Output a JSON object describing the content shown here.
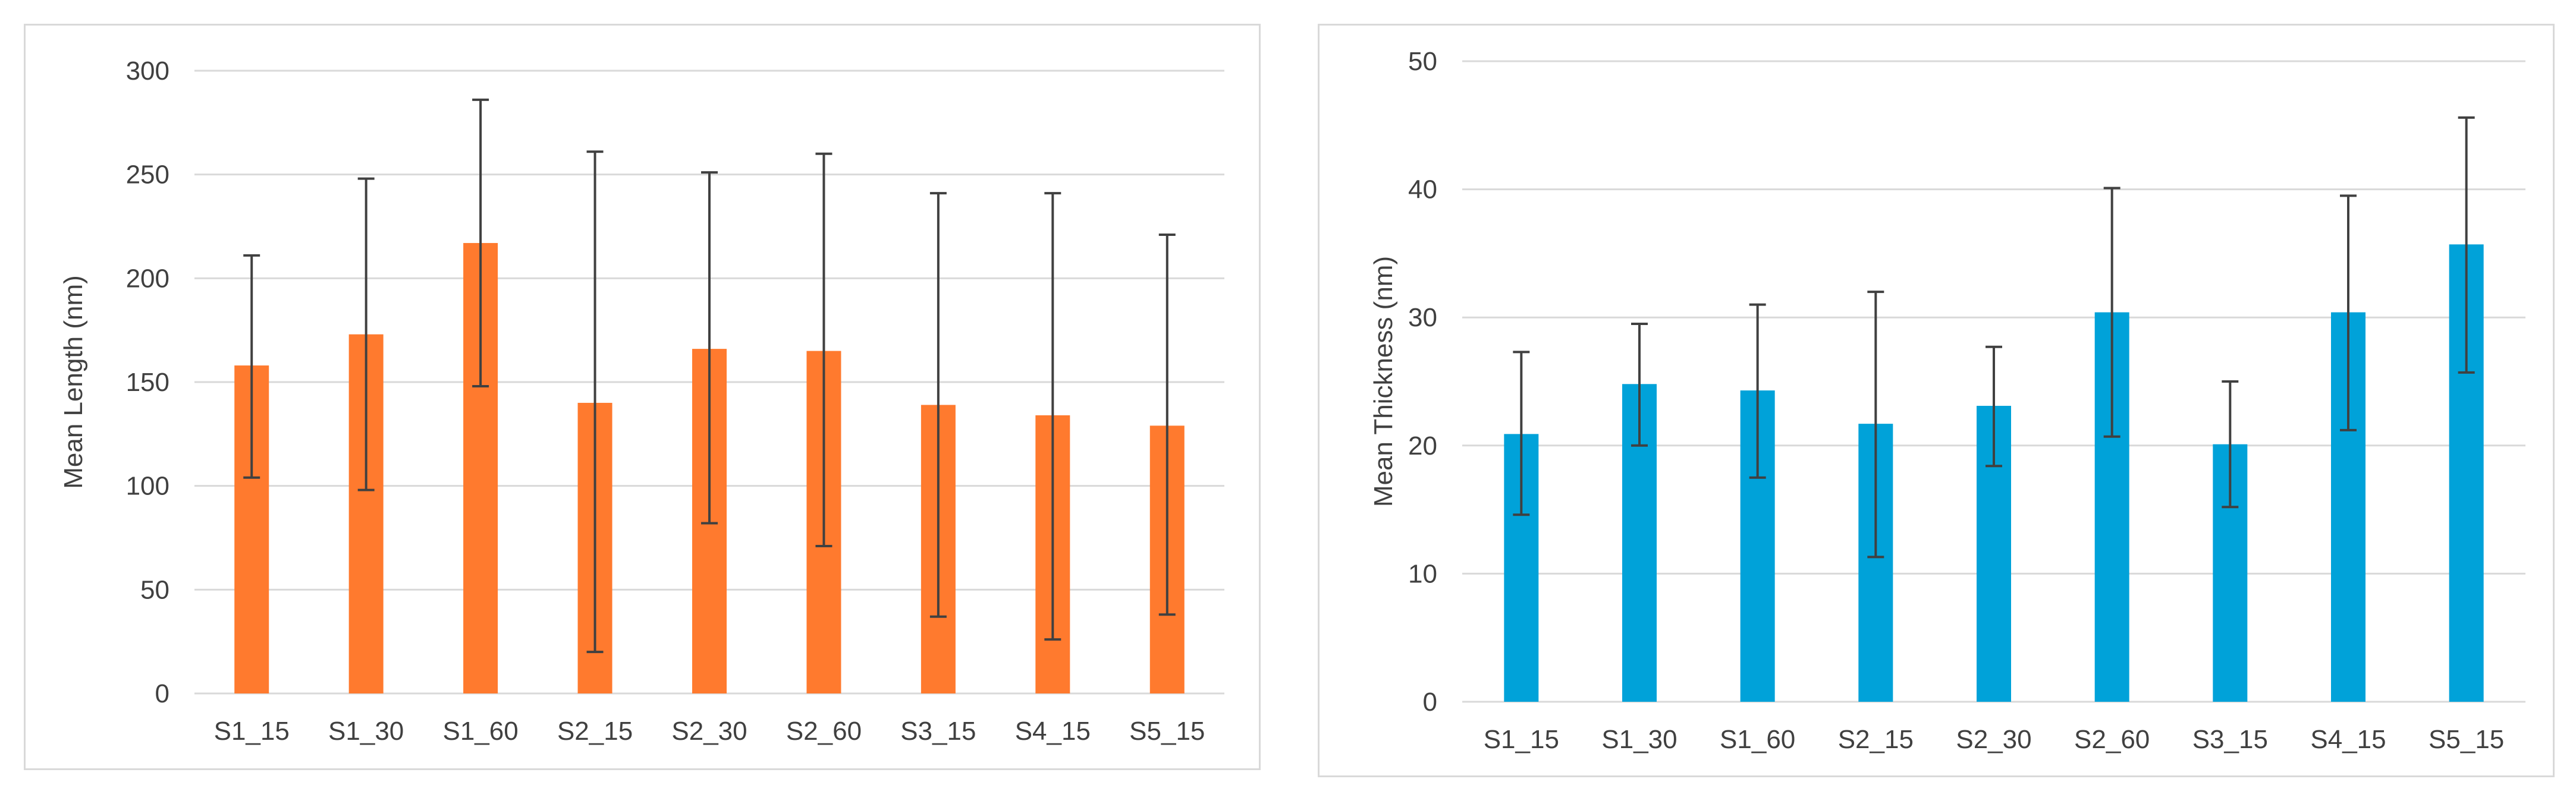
{
  "chart_data": [
    {
      "type": "bar",
      "title": "",
      "xlabel": "",
      "ylabel": "Mean Length (nm)",
      "ylim": [
        0,
        300
      ],
      "yticks": [
        0,
        50,
        100,
        150,
        200,
        250,
        300
      ],
      "categories": [
        "S1_15",
        "S1_30",
        "S1_60",
        "S2_15",
        "S2_30",
        "S2_60",
        "S3_15",
        "S4_15",
        "S5_15"
      ],
      "series": [
        {
          "name": "Mean Length",
          "color": "#FF7A2E",
          "values": [
            158,
            173,
            217,
            140,
            166,
            165,
            139,
            134,
            129
          ],
          "error_low": [
            104,
            98,
            148,
            20,
            82,
            71,
            37,
            26,
            38
          ],
          "error_high": [
            211,
            248,
            286,
            261,
            251,
            260,
            241,
            241,
            221
          ]
        }
      ],
      "grid": true
    },
    {
      "type": "bar",
      "title": "",
      "xlabel": "",
      "ylabel": "Mean Thickness (nm)",
      "ylim": [
        0,
        50
      ],
      "yticks": [
        0,
        10,
        20,
        30,
        40,
        50
      ],
      "categories": [
        "S1_15",
        "S1_30",
        "S1_60",
        "S2_15",
        "S2_30",
        "S2_60",
        "S3_15",
        "S4_15",
        "S5_15"
      ],
      "series": [
        {
          "name": "Mean Thickness",
          "color": "#00A2D9",
          "values": [
            20.9,
            24.8,
            24.3,
            21.7,
            23.1,
            30.4,
            20.1,
            30.4,
            35.7
          ],
          "error_low": [
            14.6,
            20.0,
            17.5,
            11.3,
            18.4,
            20.7,
            15.2,
            21.2,
            25.7
          ],
          "error_high": [
            27.3,
            29.5,
            31.0,
            32.0,
            27.7,
            40.1,
            25.0,
            39.5,
            45.6
          ]
        }
      ],
      "grid": true
    }
  ]
}
